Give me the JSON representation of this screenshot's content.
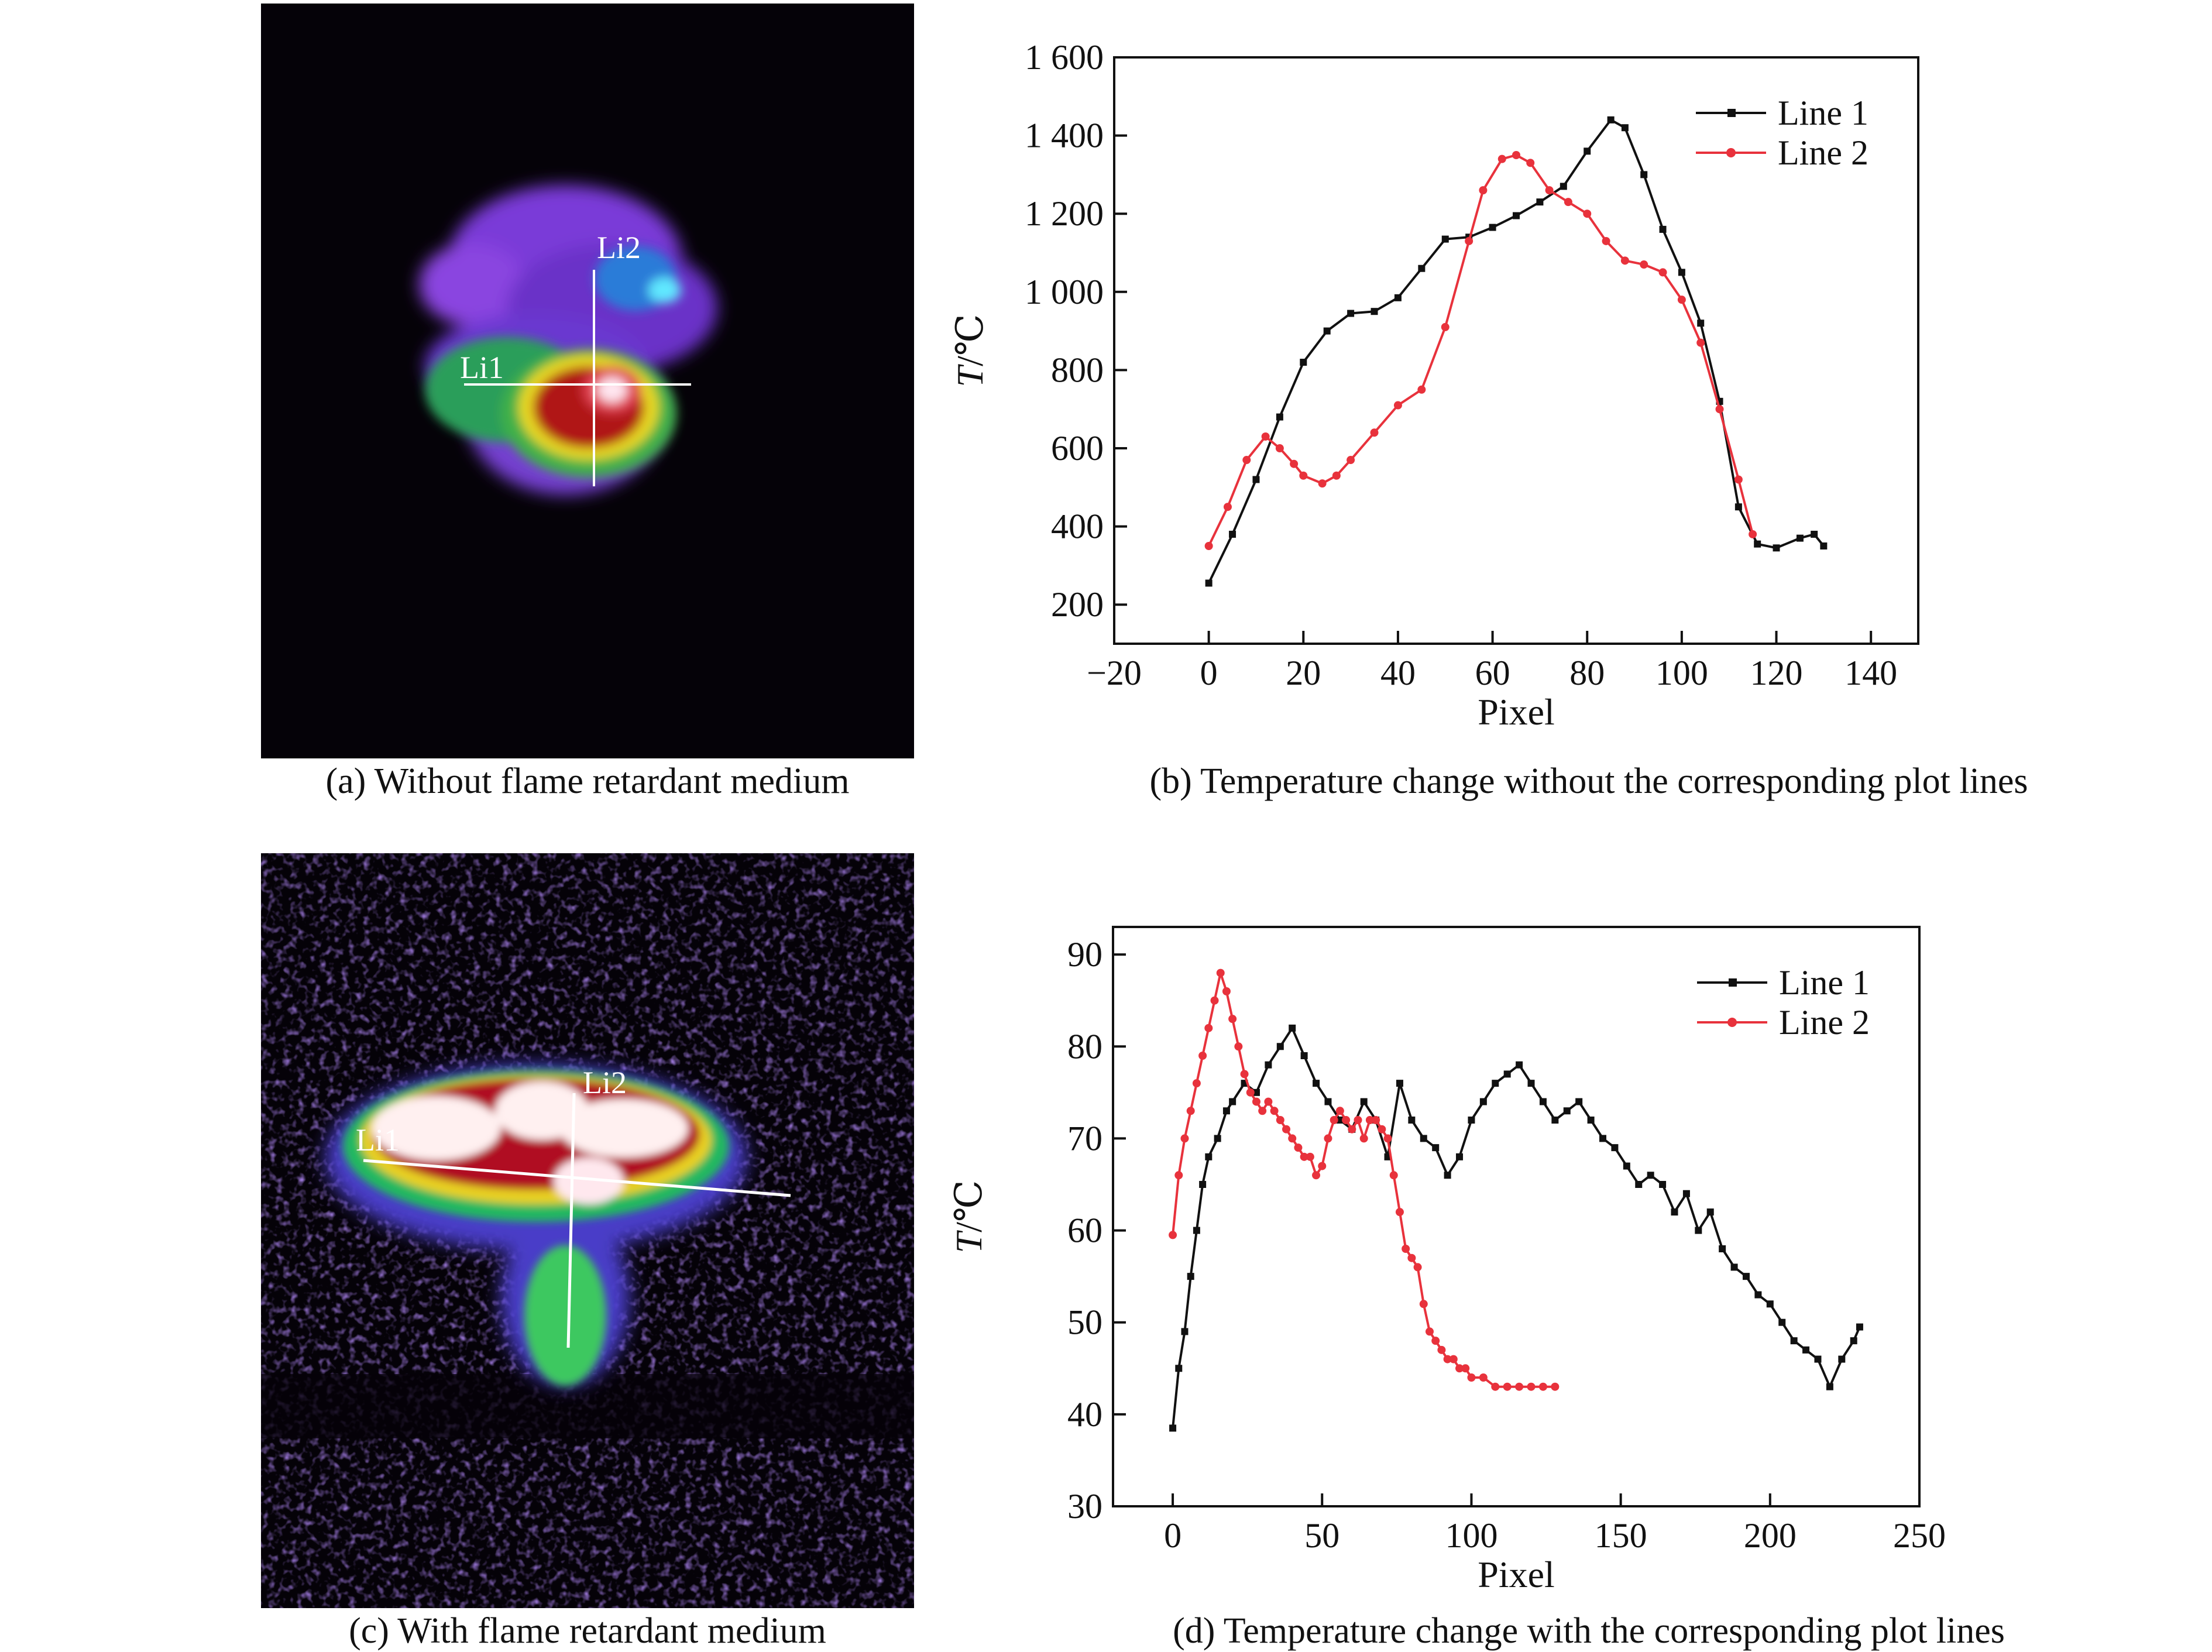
{
  "panels": {
    "a": {
      "caption": "(a) Without flame retardant medium",
      "line_labels": [
        "Li1",
        "Li2"
      ]
    },
    "b": {
      "caption": "(b) Temperature change without the corresponding plot lines"
    },
    "c": {
      "caption": "(c) With flame retardant medium",
      "line_labels": [
        "Li1",
        "Li2"
      ]
    },
    "d": {
      "caption": "(d) Temperature change with the corresponding plot lines"
    }
  },
  "colors": {
    "line1": "#111111",
    "line2": "#e8323c",
    "thermal_bg": "#050208"
  },
  "chart_data": [
    {
      "type": "line",
      "xlabel": "Pixel",
      "ylabel_italic": "T",
      "ylabel_unit": "/℃",
      "xlim": [
        -20,
        150
      ],
      "ylim": [
        100,
        1600
      ],
      "xticks": [
        -20,
        0,
        20,
        40,
        60,
        80,
        100,
        120,
        140
      ],
      "xtick_labels": [
        "−20",
        "0",
        "20",
        "40",
        "60",
        "80",
        "100",
        "120",
        "140"
      ],
      "yticks": [
        200,
        400,
        600,
        800,
        1000,
        1200,
        1400,
        1600
      ],
      "ytick_labels": [
        "200",
        "400",
        "600",
        "800",
        "1 000",
        "1 200",
        "1 400",
        "1 600"
      ],
      "legend_position": "top-right",
      "series": [
        {
          "name": "Line 1",
          "marker": "square",
          "x": [
            0,
            5,
            10,
            15,
            20,
            25,
            30,
            35,
            40,
            45,
            50,
            55,
            60,
            65,
            70,
            75,
            80,
            85,
            88,
            92,
            96,
            100,
            104,
            108,
            112,
            116,
            120,
            125,
            128,
            130
          ],
          "y": [
            255,
            380,
            520,
            680,
            820,
            900,
            945,
            950,
            985,
            1060,
            1135,
            1140,
            1165,
            1195,
            1230,
            1270,
            1360,
            1440,
            1420,
            1300,
            1160,
            1050,
            920,
            720,
            450,
            355,
            345,
            370,
            380,
            350
          ]
        },
        {
          "name": "Line 2",
          "marker": "circle",
          "x": [
            0,
            4,
            8,
            12,
            15,
            18,
            20,
            24,
            27,
            30,
            35,
            40,
            45,
            50,
            55,
            58,
            62,
            65,
            68,
            72,
            76,
            80,
            84,
            88,
            92,
            96,
            100,
            104,
            108,
            112,
            115
          ],
          "y": [
            350,
            450,
            570,
            630,
            600,
            560,
            530,
            510,
            530,
            570,
            640,
            710,
            750,
            910,
            1130,
            1260,
            1340,
            1350,
            1330,
            1260,
            1230,
            1200,
            1130,
            1080,
            1070,
            1050,
            980,
            870,
            700,
            520,
            380
          ]
        }
      ]
    },
    {
      "type": "line",
      "xlabel": "Pixel",
      "ylabel_italic": "T",
      "ylabel_unit": "/℃",
      "xlim": [
        -20,
        250
      ],
      "ylim": [
        30,
        93
      ],
      "xticks": [
        0,
        50,
        100,
        150,
        200,
        250
      ],
      "xtick_labels": [
        "0",
        "50",
        "100",
        "150",
        "200",
        "250"
      ],
      "yticks": [
        30,
        40,
        50,
        60,
        70,
        80,
        90
      ],
      "ytick_labels": [
        "30",
        "40",
        "50",
        "60",
        "70",
        "80",
        "90"
      ],
      "legend_position": "top-right",
      "series": [
        {
          "name": "Line 1",
          "marker": "square",
          "x": [
            0,
            2,
            4,
            6,
            8,
            10,
            12,
            15,
            18,
            20,
            24,
            28,
            32,
            36,
            40,
            44,
            48,
            52,
            56,
            60,
            64,
            68,
            72,
            76,
            80,
            84,
            88,
            92,
            96,
            100,
            104,
            108,
            112,
            116,
            120,
            124,
            128,
            132,
            136,
            140,
            144,
            148,
            152,
            156,
            160,
            164,
            168,
            172,
            176,
            180,
            184,
            188,
            192,
            196,
            200,
            204,
            208,
            212,
            216,
            220,
            224,
            228,
            230
          ],
          "y": [
            38.5,
            45,
            49,
            55,
            60,
            65,
            68,
            70,
            73,
            74,
            76,
            75,
            78,
            80,
            82,
            79,
            76,
            74,
            72,
            71,
            74,
            72,
            68,
            76,
            72,
            70,
            69,
            66,
            68,
            72,
            74,
            76,
            77,
            78,
            76,
            74,
            72,
            73,
            74,
            72,
            70,
            69,
            67,
            65,
            66,
            65,
            62,
            64,
            60,
            62,
            58,
            56,
            55,
            53,
            52,
            50,
            48,
            47,
            46,
            43,
            46,
            48,
            49.5
          ]
        },
        {
          "name": "Line 2",
          "marker": "circle",
          "x": [
            0,
            2,
            4,
            6,
            8,
            10,
            12,
            14,
            16,
            18,
            20,
            22,
            24,
            26,
            28,
            30,
            32,
            34,
            36,
            38,
            40,
            42,
            44,
            46,
            48,
            50,
            52,
            54,
            56,
            58,
            60,
            62,
            64,
            66,
            68,
            70,
            72,
            74,
            76,
            78,
            80,
            82,
            84,
            86,
            88,
            90,
            92,
            94,
            96,
            98,
            100,
            104,
            108,
            112,
            116,
            120,
            124,
            128
          ],
          "y": [
            59.5,
            66,
            70,
            73,
            76,
            79,
            82,
            85,
            88,
            86,
            83,
            80,
            77,
            75,
            74,
            73,
            74,
            73,
            72,
            71,
            70,
            69,
            68,
            68,
            66,
            67,
            70,
            72,
            73,
            72,
            71,
            72,
            70,
            72,
            72,
            71,
            70,
            66,
            62,
            58,
            57,
            56,
            52,
            49,
            48,
            47,
            46,
            46,
            45,
            45,
            44,
            44,
            43,
            43,
            43,
            43,
            43,
            43
          ]
        }
      ]
    }
  ]
}
